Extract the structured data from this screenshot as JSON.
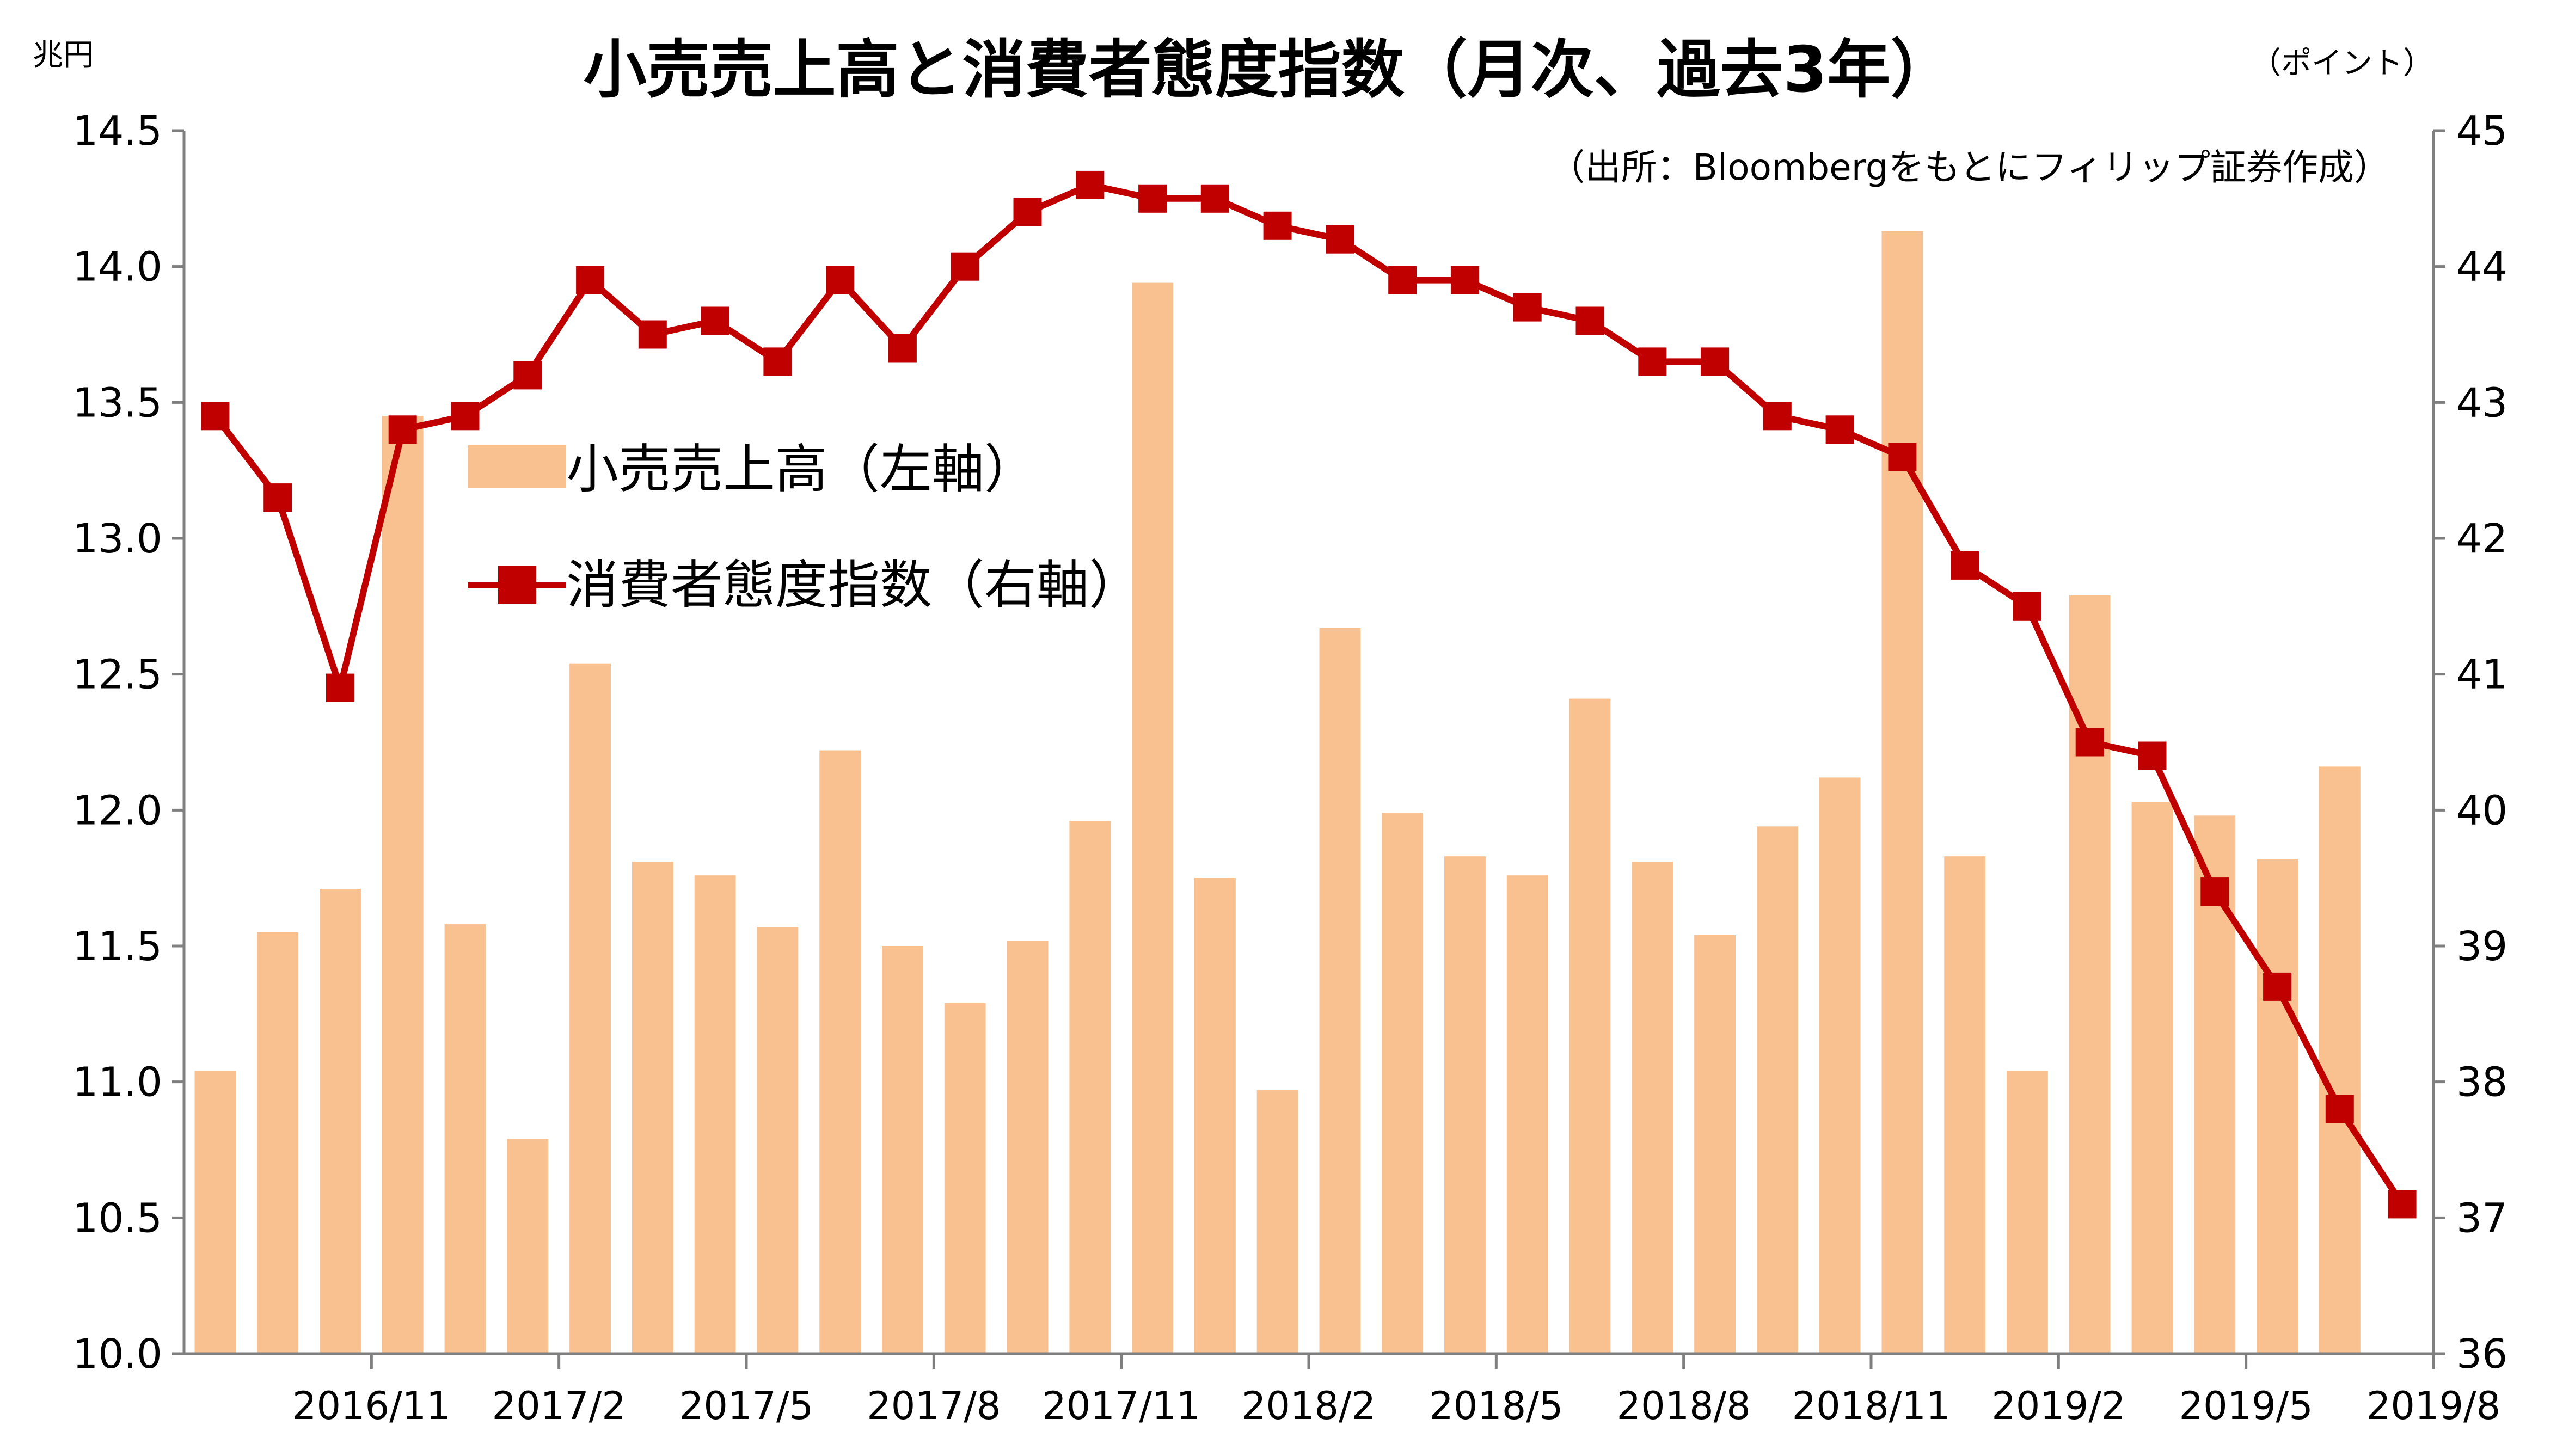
{
  "chart_data": {
    "type": "bar+line",
    "title": "小売売上高と消費者態度指数（月次、過去3年）",
    "source": "（出所：Bloombergをもとにフィリップ証券作成）",
    "left_axis_unit": "兆円",
    "right_axis_unit": "（ポイント）",
    "y_left": {
      "min": 10.0,
      "max": 14.5,
      "step": 0.5,
      "tick_labels": [
        "10.0",
        "10.5",
        "11.0",
        "11.5",
        "12.0",
        "12.5",
        "13.0",
        "13.5",
        "14.0",
        "14.5"
      ]
    },
    "y_right": {
      "min": 36,
      "max": 45,
      "step": 1,
      "tick_labels": [
        "36",
        "37",
        "38",
        "39",
        "40",
        "41",
        "42",
        "43",
        "44",
        "45"
      ]
    },
    "x_tick_labels": [
      "2016/11",
      "2017/2",
      "2017/5",
      "2017/8",
      "2017/11",
      "2018/2",
      "2018/5",
      "2018/8",
      "2018/11",
      "2019/2",
      "2019/5",
      "2019/8"
    ],
    "legend": {
      "bar_label": "小売売上高（左軸）",
      "line_label": "消費者態度指数（右軸）"
    },
    "colors": {
      "bar": "#f9c090",
      "line": "#c00000",
      "axis": "#7f7f7f"
    },
    "months": [
      "2016/9",
      "2016/10",
      "2016/11",
      "2016/12",
      "2017/1",
      "2017/2",
      "2017/3",
      "2017/4",
      "2017/5",
      "2017/6",
      "2017/7",
      "2017/8",
      "2017/9",
      "2017/10",
      "2017/11",
      "2017/12",
      "2018/1",
      "2018/2",
      "2018/3",
      "2018/4",
      "2018/5",
      "2018/6",
      "2018/7",
      "2018/8",
      "2018/9",
      "2018/10",
      "2018/11",
      "2018/12",
      "2019/1",
      "2019/2",
      "2019/3",
      "2019/4",
      "2019/5",
      "2019/6",
      "2019/7",
      "2019/8"
    ],
    "series": [
      {
        "name": "小売売上高",
        "axis": "left",
        "type": "bar",
        "values": [
          11.04,
          11.55,
          11.71,
          13.45,
          11.58,
          10.79,
          12.54,
          11.81,
          11.76,
          11.57,
          12.22,
          11.5,
          11.29,
          11.52,
          11.96,
          13.94,
          11.75,
          10.97,
          12.67,
          11.99,
          11.83,
          11.76,
          12.41,
          11.81,
          11.54,
          11.94,
          12.12,
          14.13,
          11.83,
          11.04,
          12.79,
          12.03,
          11.98,
          11.82,
          12.16,
          null
        ]
      },
      {
        "name": "消費者態度指数",
        "axis": "right",
        "type": "line",
        "values": [
          42.9,
          42.3,
          40.9,
          42.8,
          42.9,
          43.2,
          43.9,
          43.5,
          43.6,
          43.3,
          43.9,
          43.4,
          44.0,
          44.4,
          44.6,
          44.5,
          44.5,
          44.3,
          44.2,
          43.9,
          43.9,
          43.7,
          43.6,
          43.3,
          43.3,
          42.9,
          42.8,
          42.6,
          41.8,
          41.5,
          40.5,
          40.4,
          39.4,
          38.7,
          37.8,
          37.1
        ]
      }
    ]
  }
}
